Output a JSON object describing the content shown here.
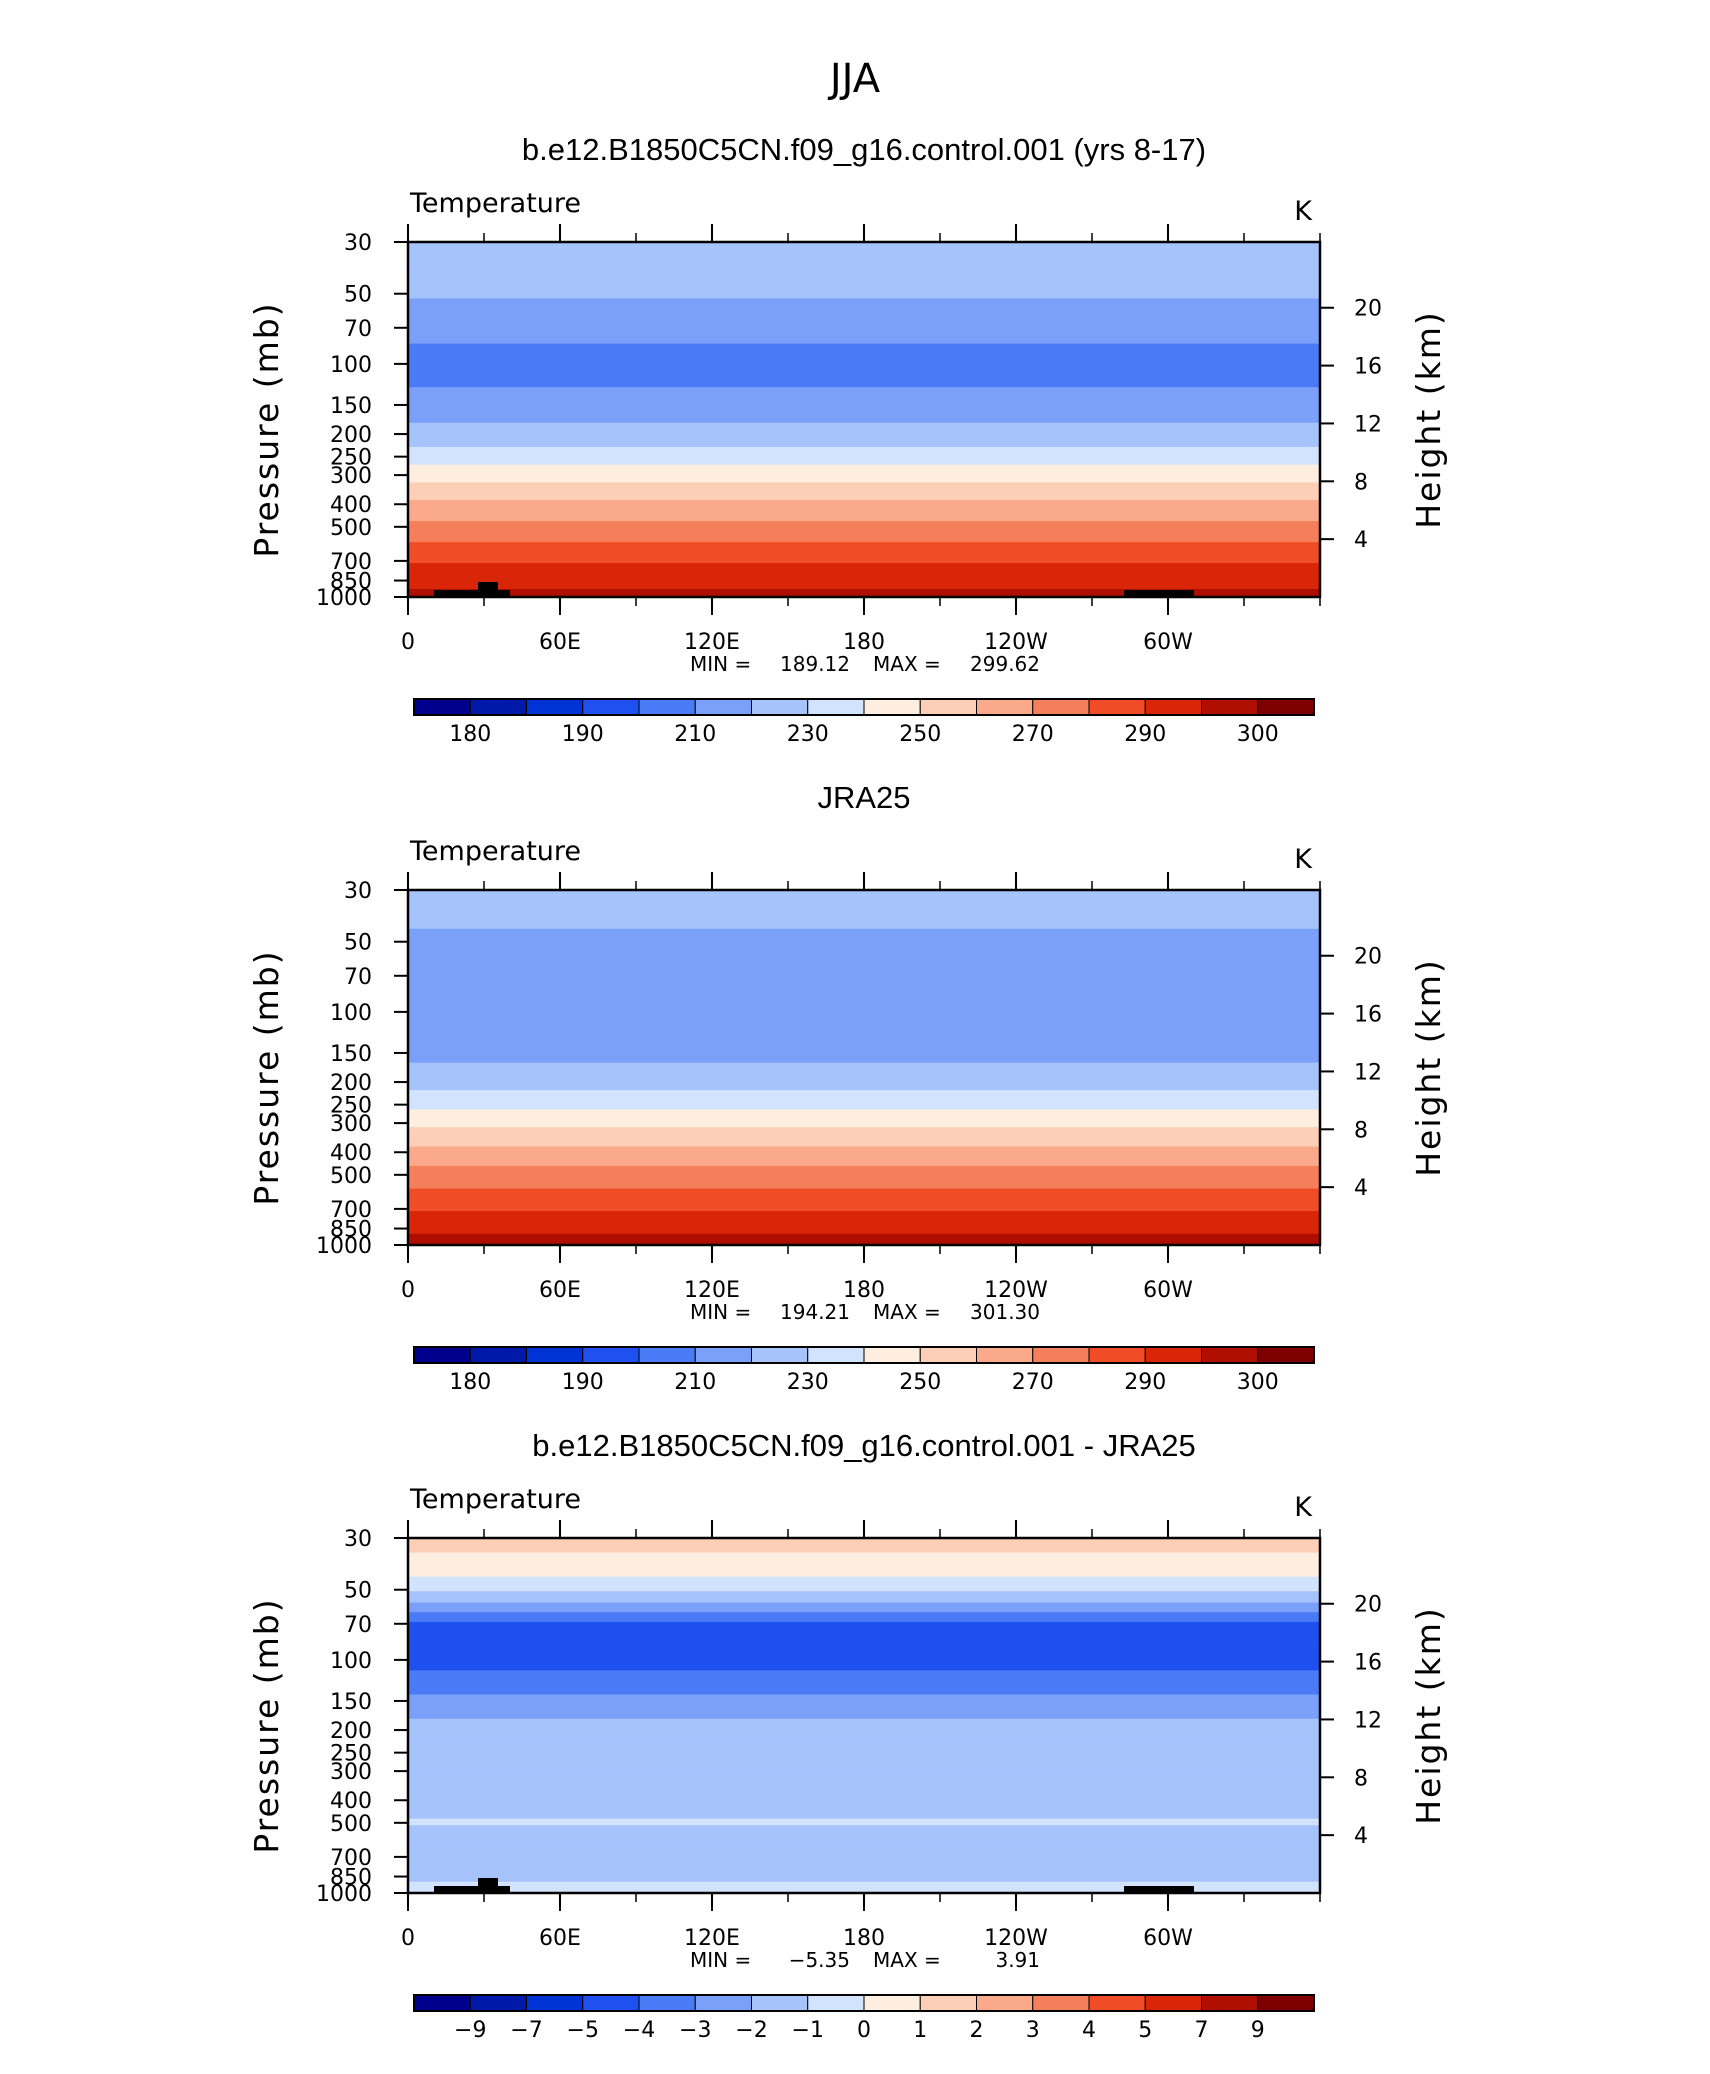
{
  "page": {
    "title": "JJA"
  },
  "colors": {
    "temperature_palette": [
      "#00008c",
      "#0019a8",
      "#0033d6",
      "#1f50f0",
      "#4a7af5",
      "#7aa0fa",
      "#a6c3fc",
      "#d1e3fd",
      "#fdeedf",
      "#fccfb6",
      "#faa98a",
      "#f57f5a",
      "#f04d26",
      "#d92608",
      "#b00f00",
      "#800000"
    ],
    "difference_palette": [
      "#00008c",
      "#0019a8",
      "#0033d6",
      "#1f50f0",
      "#4a7af5",
      "#7aa0fa",
      "#a6c3fc",
      "#d1e3fd",
      "#fdeedf",
      "#fccfb6",
      "#faa98a",
      "#f57f5a",
      "#f04d26",
      "#d92608",
      "#b00f00",
      "#800000"
    ],
    "topography": "#000000"
  },
  "chart_data": [
    {
      "type": "heatmap",
      "title": "b.e12.B1850C5CN.f09_g16.control.001 (yrs 8-17)",
      "variable_label": "Temperature",
      "units": "K",
      "ylabel": "Pressure (mb)",
      "y2label": "Height (km)",
      "x_ticks": [
        "0",
        "60E",
        "120E",
        "180",
        "120W",
        "60W"
      ],
      "y_ticks": [
        "30",
        "50",
        "70",
        "100",
        "150",
        "200",
        "250",
        "300",
        "400",
        "500",
        "700",
        "850",
        "1000"
      ],
      "y2_ticks": [
        "4",
        "8",
        "12",
        "16",
        "20"
      ],
      "stats": {
        "min_label": "MIN =",
        "min": "189.12",
        "max_label": "MAX =",
        "max": "299.62"
      },
      "colorbar_labels": [
        "180",
        "190",
        "210",
        "230",
        "250",
        "270",
        "290",
        "300"
      ],
      "levels": [
        175,
        180,
        185,
        190,
        200,
        210,
        220,
        230,
        240,
        250,
        260,
        270,
        280,
        290,
        295,
        300
      ],
      "profile": [
        {
          "p": 30,
          "v": 216
        },
        {
          "p": 50,
          "v": 211
        },
        {
          "p": 70,
          "v": 203
        },
        {
          "p": 100,
          "v": 196
        },
        {
          "p": 150,
          "v": 203
        },
        {
          "p": 200,
          "v": 214
        },
        {
          "p": 250,
          "v": 225
        },
        {
          "p": 300,
          "v": 236
        },
        {
          "p": 400,
          "v": 252
        },
        {
          "p": 500,
          "v": 263
        },
        {
          "p": 700,
          "v": 279
        },
        {
          "p": 850,
          "v": 287
        },
        {
          "p": 1000,
          "v": 293
        }
      ]
    },
    {
      "type": "heatmap",
      "title": "JRA25",
      "variable_label": "Temperature",
      "units": "K",
      "ylabel": "Pressure (mb)",
      "y2label": "Height (km)",
      "x_ticks": [
        "0",
        "60E",
        "120E",
        "180",
        "120W",
        "60W"
      ],
      "y_ticks": [
        "30",
        "50",
        "70",
        "100",
        "150",
        "200",
        "250",
        "300",
        "400",
        "500",
        "700",
        "850",
        "1000"
      ],
      "y2_ticks": [
        "4",
        "8",
        "12",
        "16",
        "20"
      ],
      "stats": {
        "min_label": "MIN =",
        "min": "194.21",
        "max_label": "MAX =",
        "max": "301.30"
      },
      "colorbar_labels": [
        "180",
        "190",
        "210",
        "230",
        "250",
        "270",
        "290",
        "300"
      ],
      "levels": [
        175,
        180,
        185,
        190,
        200,
        210,
        220,
        230,
        240,
        250,
        260,
        270,
        280,
        290,
        295,
        300
      ],
      "profile": [
        {
          "p": 30,
          "v": 216
        },
        {
          "p": 50,
          "v": 208
        },
        {
          "p": 70,
          "v": 206
        },
        {
          "p": 100,
          "v": 201
        },
        {
          "p": 150,
          "v": 207
        },
        {
          "p": 200,
          "v": 216
        },
        {
          "p": 250,
          "v": 227
        },
        {
          "p": 300,
          "v": 238
        },
        {
          "p": 400,
          "v": 253
        },
        {
          "p": 500,
          "v": 264
        },
        {
          "p": 700,
          "v": 279
        },
        {
          "p": 850,
          "v": 288
        },
        {
          "p": 1000,
          "v": 294
        }
      ]
    },
    {
      "type": "heatmap",
      "title": "b.e12.B1850C5CN.f09_g16.control.001 - JRA25",
      "variable_label": "Temperature",
      "units": "K",
      "ylabel": "Pressure (mb)",
      "y2label": "Height (km)",
      "x_ticks": [
        "0",
        "60E",
        "120E",
        "180",
        "120W",
        "60W"
      ],
      "y_ticks": [
        "30",
        "50",
        "70",
        "100",
        "150",
        "200",
        "250",
        "300",
        "400",
        "500",
        "700",
        "850",
        "1000"
      ],
      "y2_ticks": [
        "4",
        "8",
        "12",
        "16",
        "20"
      ],
      "stats": {
        "min_label": "MIN =",
        "min": "−5.35",
        "max_label": "MAX =",
        "max": "3.91"
      },
      "colorbar_labels": [
        "−9",
        "−7",
        "−5",
        "−4",
        "−3",
        "−2",
        "−1",
        "0",
        "1",
        "2",
        "3",
        "4",
        "5",
        "7",
        "9"
      ],
      "levels": [
        -9,
        -7,
        -5,
        -4,
        -3,
        -2,
        -1,
        0,
        1,
        2,
        3,
        4,
        5,
        7,
        9
      ],
      "profile": [
        {
          "p": 30,
          "v": 1.4
        },
        {
          "p": 40,
          "v": 0.6
        },
        {
          "p": 50,
          "v": -0.8
        },
        {
          "p": 60,
          "v": -2.6
        },
        {
          "p": 70,
          "v": -4.2
        },
        {
          "p": 100,
          "v": -4.4
        },
        {
          "p": 130,
          "v": -3.4
        },
        {
          "p": 160,
          "v": -2.4
        },
        {
          "p": 200,
          "v": -1.6
        },
        {
          "p": 300,
          "v": -1.5
        },
        {
          "p": 400,
          "v": -1.5
        },
        {
          "p": 500,
          "v": -0.9
        },
        {
          "p": 600,
          "v": -1.6
        },
        {
          "p": 700,
          "v": -1.7
        },
        {
          "p": 850,
          "v": -1.6
        },
        {
          "p": 925,
          "v": -0.7
        },
        {
          "p": 1000,
          "v": -0.6
        }
      ]
    }
  ]
}
